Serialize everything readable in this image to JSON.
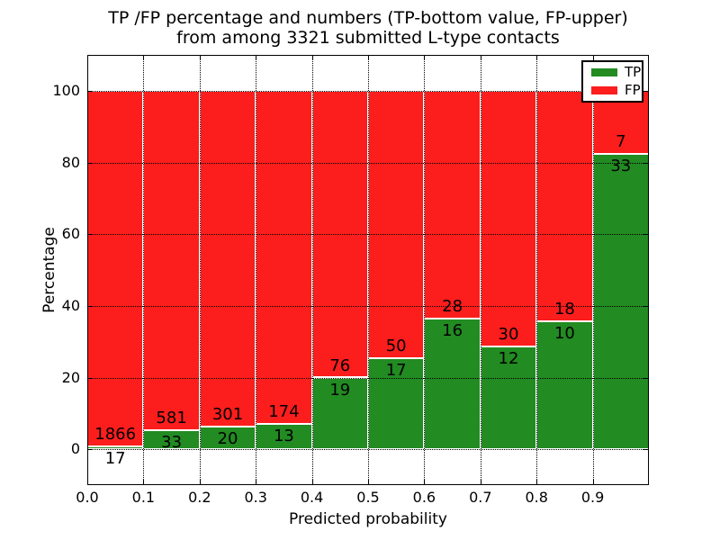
{
  "chart_data": {
    "type": "bar",
    "stacked": true,
    "units": "percent",
    "title": "TP /FP percentage and numbers (TP-bottom value, FP-upper)\nfrom among 3321 submitted L-type contacts",
    "title_line1": "TP /FP percentage and numbers (TP-bottom value, FP-upper)",
    "title_line2": "from among 3321 submitted L-type contacts",
    "xlabel": "Predicted probability",
    "ylabel": "Percentage",
    "xlim": [
      0.0,
      1.0
    ],
    "ylim": [
      -10,
      110
    ],
    "grid": {
      "visible": true,
      "style": "dotted",
      "color": "#000000"
    },
    "legend": {
      "position": "upper-right",
      "entries": [
        {
          "label": "TP",
          "color": "#228b22"
        },
        {
          "label": "FP",
          "color": "#fc1d1d"
        }
      ]
    },
    "xticks": [
      {
        "value": 0.0,
        "label": "0.0"
      },
      {
        "value": 0.1,
        "label": "0.1"
      },
      {
        "value": 0.2,
        "label": "0.2"
      },
      {
        "value": 0.3,
        "label": "0.3"
      },
      {
        "value": 0.4,
        "label": "0.4"
      },
      {
        "value": 0.5,
        "label": "0.5"
      },
      {
        "value": 0.6,
        "label": "0.6"
      },
      {
        "value": 0.7,
        "label": "0.7"
      },
      {
        "value": 0.8,
        "label": "0.8"
      },
      {
        "value": 0.9,
        "label": "0.9"
      }
    ],
    "yticks": [
      {
        "value": 0,
        "label": "0"
      },
      {
        "value": 20,
        "label": "20"
      },
      {
        "value": 40,
        "label": "40"
      },
      {
        "value": 60,
        "label": "60"
      },
      {
        "value": 80,
        "label": "80"
      },
      {
        "value": 100,
        "label": "100"
      }
    ],
    "series": [
      {
        "name": "TP",
        "color": "#228b22",
        "counts": [
          17,
          33,
          20,
          13,
          19,
          17,
          16,
          12,
          10,
          33
        ]
      },
      {
        "name": "FP",
        "color": "#fc1d1d",
        "counts": [
          1866,
          581,
          301,
          174,
          76,
          50,
          28,
          30,
          18,
          7
        ]
      }
    ],
    "bins": [
      {
        "range": [
          0.0,
          0.1
        ],
        "tp": 17,
        "fp": 1866,
        "tp_percent": 0.9
      },
      {
        "range": [
          0.1,
          0.2
        ],
        "tp": 33,
        "fp": 581,
        "tp_percent": 5.4
      },
      {
        "range": [
          0.2,
          0.3
        ],
        "tp": 20,
        "fp": 301,
        "tp_percent": 6.2
      },
      {
        "range": [
          0.3,
          0.4
        ],
        "tp": 13,
        "fp": 174,
        "tp_percent": 7.0
      },
      {
        "range": [
          0.4,
          0.5
        ],
        "tp": 19,
        "fp": 76,
        "tp_percent": 20.0
      },
      {
        "range": [
          0.5,
          0.6
        ],
        "tp": 17,
        "fp": 50,
        "tp_percent": 25.4
      },
      {
        "range": [
          0.6,
          0.7
        ],
        "tp": 16,
        "fp": 28,
        "tp_percent": 36.4
      },
      {
        "range": [
          0.7,
          0.8
        ],
        "tp": 12,
        "fp": 30,
        "tp_percent": 28.6
      },
      {
        "range": [
          0.8,
          0.9
        ],
        "tp": 10,
        "fp": 18,
        "tp_percent": 35.7
      },
      {
        "range": [
          0.9,
          1.0
        ],
        "tp": 33,
        "fp": 7,
        "tp_percent": 82.5
      }
    ],
    "total_contacts": 3321
  }
}
